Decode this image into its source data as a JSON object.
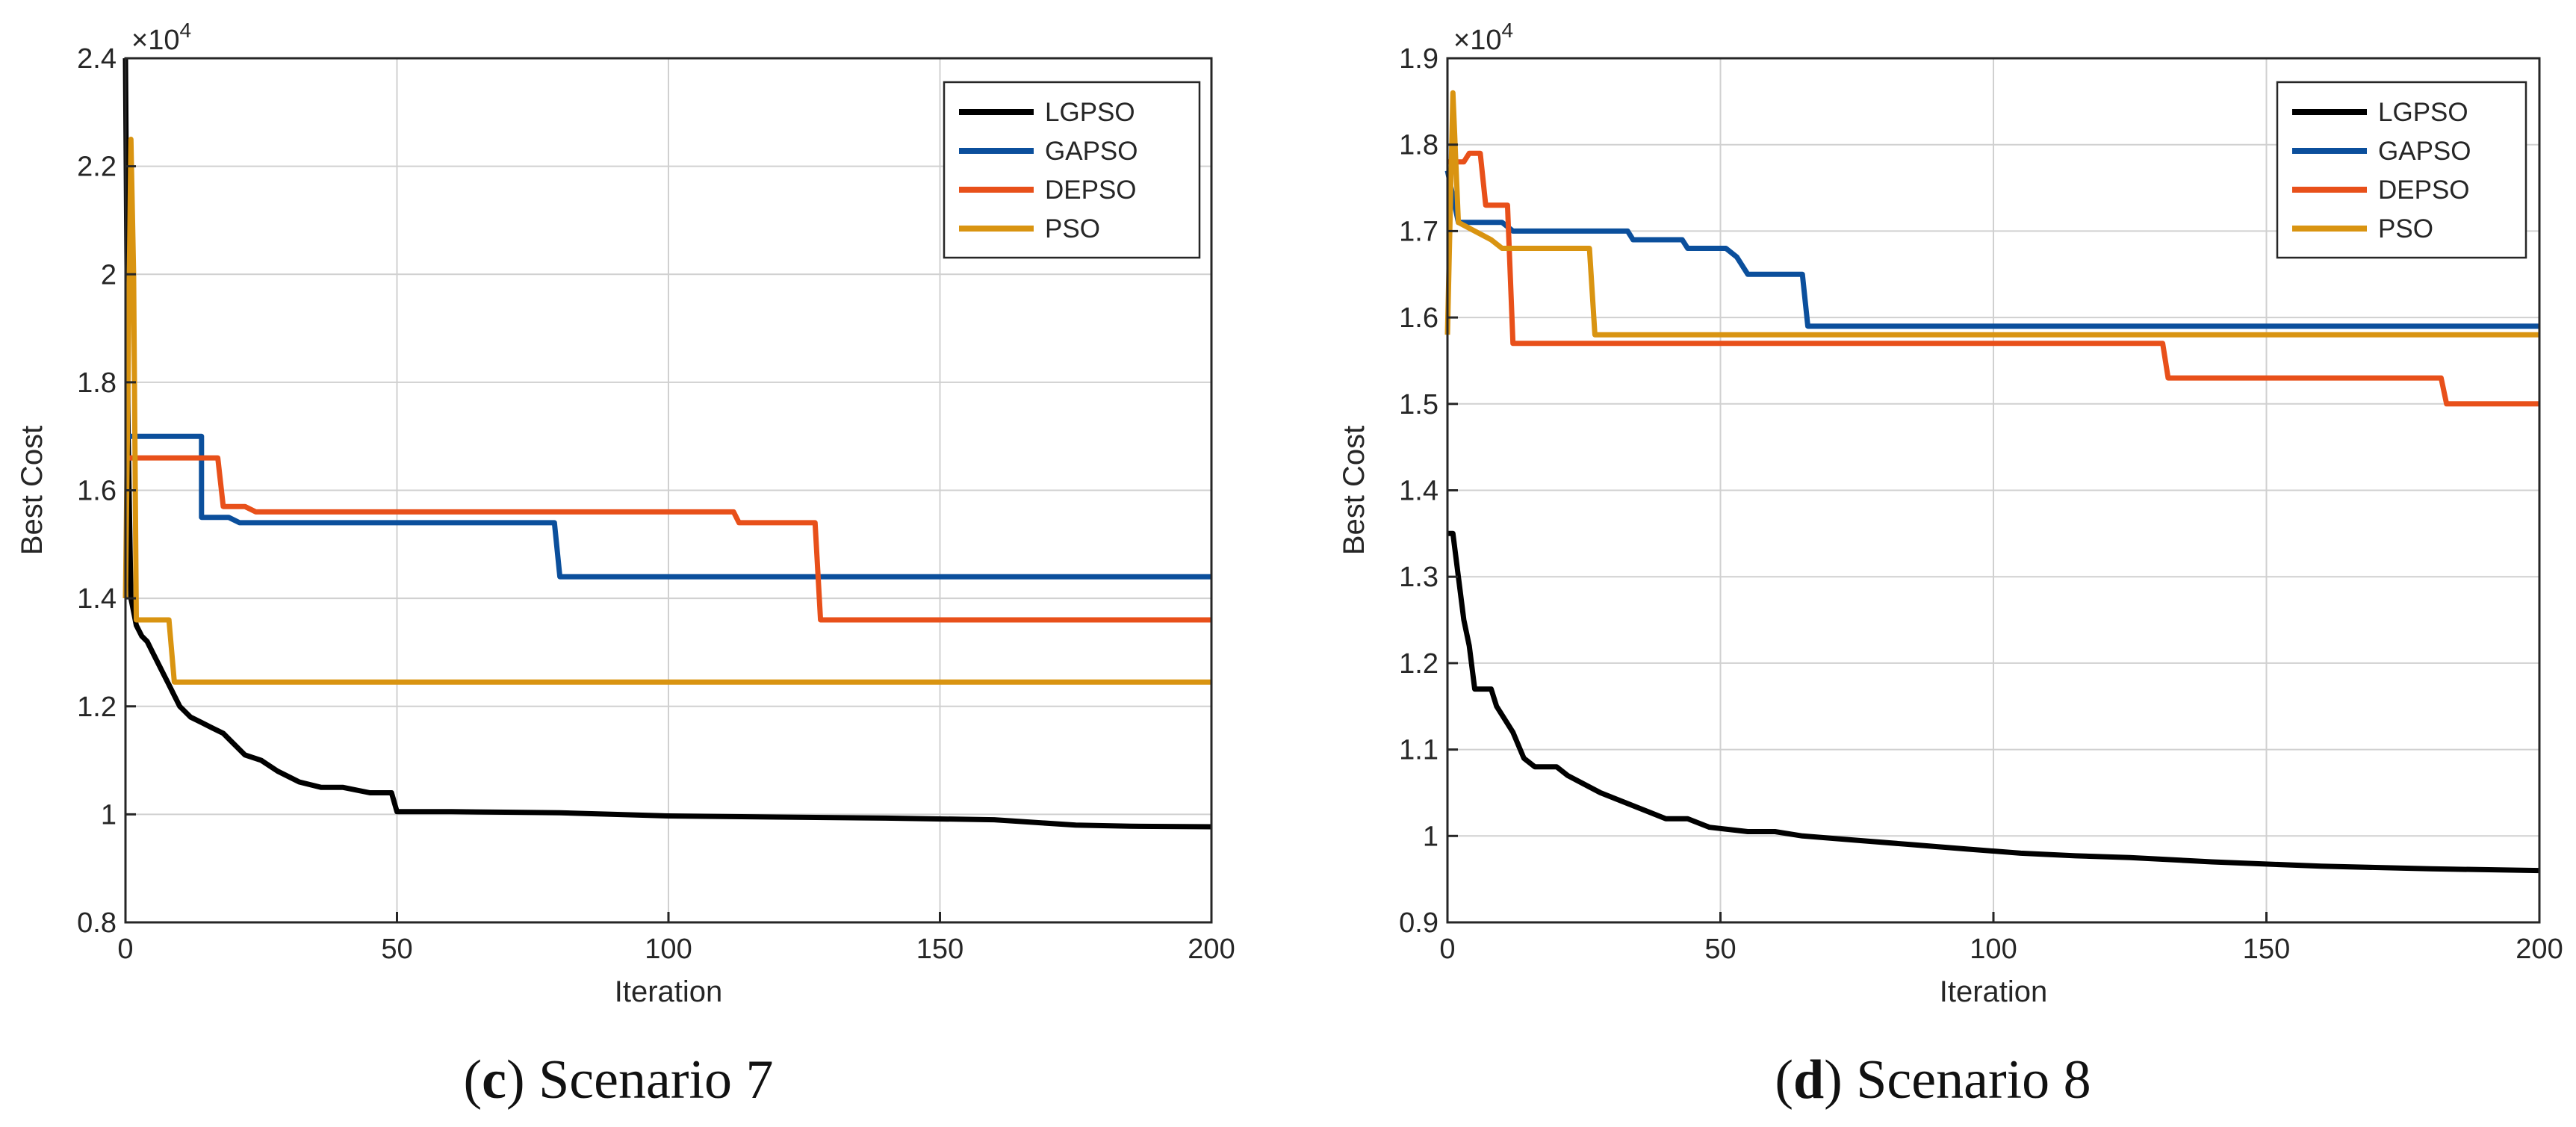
{
  "chart_data": [
    {
      "type": "line",
      "panel_letter": "c",
      "caption": "Scenario 7",
      "multiplier": "×10",
      "multiplier_exp": "4",
      "xlabel": "Iteration",
      "ylabel": "Best Cost",
      "xlim": [
        0,
        200
      ],
      "ylim": [
        0.8,
        2.4
      ],
      "xticks": [
        0,
        50,
        100,
        150,
        200
      ],
      "xtick_labels": [
        "0",
        "50",
        "100",
        "150",
        "200"
      ],
      "yticks": [
        0.8,
        1.0,
        1.2,
        1.4,
        1.6,
        1.8,
        2.0,
        2.2,
        2.4
      ],
      "ytick_labels": [
        "0.8",
        "1",
        "1.2",
        "1.4",
        "1.6",
        "1.8",
        "2",
        "2.2",
        "2.4"
      ],
      "grid": true,
      "legend_position": "top-right",
      "series": [
        {
          "name": "LGPSO",
          "color": "#000000",
          "points": [
            [
              0,
              2.4
            ],
            [
              0.5,
              1.7
            ],
            [
              1,
              1.4
            ],
            [
              2,
              1.35
            ],
            [
              3,
              1.33
            ],
            [
              4,
              1.32
            ],
            [
              5,
              1.3
            ],
            [
              6,
              1.28
            ],
            [
              7,
              1.26
            ],
            [
              8,
              1.24
            ],
            [
              9,
              1.22
            ],
            [
              10,
              1.2
            ],
            [
              12,
              1.18
            ],
            [
              14,
              1.17
            ],
            [
              16,
              1.16
            ],
            [
              18,
              1.15
            ],
            [
              20,
              1.13
            ],
            [
              22,
              1.11
            ],
            [
              25,
              1.1
            ],
            [
              28,
              1.08
            ],
            [
              32,
              1.06
            ],
            [
              36,
              1.05
            ],
            [
              40,
              1.05
            ],
            [
              45,
              1.04
            ],
            [
              49,
              1.04
            ],
            [
              50,
              1.005
            ],
            [
              60,
              1.005
            ],
            [
              70,
              1.004
            ],
            [
              80,
              1.003
            ],
            [
              90,
              1.0
            ],
            [
              100,
              0.997
            ],
            [
              120,
              0.995
            ],
            [
              140,
              0.993
            ],
            [
              160,
              0.99
            ],
            [
              175,
              0.98
            ],
            [
              185,
              0.978
            ],
            [
              200,
              0.977
            ]
          ]
        },
        {
          "name": "GAPSO",
          "color": "#0b4f9c",
          "points": [
            [
              0,
              1.7
            ],
            [
              14,
              1.7
            ],
            [
              14,
              1.55
            ],
            [
              19,
              1.55
            ],
            [
              21,
              1.54
            ],
            [
              79,
              1.54
            ],
            [
              80,
              1.44
            ],
            [
              200,
              1.44
            ]
          ]
        },
        {
          "name": "DEPSO",
          "color": "#e8501a",
          "points": [
            [
              0,
              1.66
            ],
            [
              17,
              1.66
            ],
            [
              18,
              1.57
            ],
            [
              22,
              1.57
            ],
            [
              24,
              1.56
            ],
            [
              112,
              1.56
            ],
            [
              113,
              1.54
            ],
            [
              127,
              1.54
            ],
            [
              128,
              1.36
            ],
            [
              200,
              1.36
            ]
          ]
        },
        {
          "name": "PSO",
          "color": "#d99411",
          "points": [
            [
              0,
              1.4
            ],
            [
              1,
              2.25
            ],
            [
              1.5,
              2.0
            ],
            [
              2,
              1.36
            ],
            [
              8,
              1.36
            ],
            [
              9,
              1.245
            ],
            [
              200,
              1.245
            ]
          ]
        }
      ]
    },
    {
      "type": "line",
      "panel_letter": "d",
      "caption": "Scenario 8",
      "multiplier": "×10",
      "multiplier_exp": "4",
      "xlabel": "Iteration",
      "ylabel": "Best Cost",
      "xlim": [
        0,
        200
      ],
      "ylim": [
        0.9,
        1.9
      ],
      "xticks": [
        0,
        50,
        100,
        150,
        200
      ],
      "xtick_labels": [
        "0",
        "50",
        "100",
        "150",
        "200"
      ],
      "yticks": [
        0.9,
        1.0,
        1.1,
        1.2,
        1.3,
        1.4,
        1.5,
        1.6,
        1.7,
        1.8,
        1.9
      ],
      "ytick_labels": [
        "0.9",
        "1",
        "1.1",
        "1.2",
        "1.3",
        "1.4",
        "1.5",
        "1.6",
        "1.7",
        "1.8",
        "1.9"
      ],
      "grid": true,
      "legend_position": "top-right",
      "series": [
        {
          "name": "LGPSO",
          "color": "#000000",
          "points": [
            [
              0,
              1.35
            ],
            [
              1,
              1.35
            ],
            [
              2,
              1.3
            ],
            [
              3,
              1.25
            ],
            [
              4,
              1.22
            ],
            [
              5,
              1.17
            ],
            [
              8,
              1.17
            ],
            [
              9,
              1.15
            ],
            [
              11,
              1.13
            ],
            [
              12,
              1.12
            ],
            [
              14,
              1.09
            ],
            [
              16,
              1.08
            ],
            [
              20,
              1.08
            ],
            [
              22,
              1.07
            ],
            [
              25,
              1.06
            ],
            [
              28,
              1.05
            ],
            [
              32,
              1.04
            ],
            [
              36,
              1.03
            ],
            [
              40,
              1.02
            ],
            [
              44,
              1.02
            ],
            [
              48,
              1.01
            ],
            [
              55,
              1.005
            ],
            [
              60,
              1.005
            ],
            [
              65,
              1.0
            ],
            [
              75,
              0.995
            ],
            [
              85,
              0.99
            ],
            [
              95,
              0.985
            ],
            [
              105,
              0.98
            ],
            [
              115,
              0.977
            ],
            [
              125,
              0.975
            ],
            [
              140,
              0.97
            ],
            [
              160,
              0.965
            ],
            [
              180,
              0.962
            ],
            [
              200,
              0.96
            ]
          ]
        },
        {
          "name": "GAPSO",
          "color": "#0b4f9c",
          "points": [
            [
              0,
              1.77
            ],
            [
              2,
              1.71
            ],
            [
              10,
              1.71
            ],
            [
              12,
              1.7
            ],
            [
              33,
              1.7
            ],
            [
              34,
              1.69
            ],
            [
              43,
              1.69
            ],
            [
              44,
              1.68
            ],
            [
              51,
              1.68
            ],
            [
              53,
              1.67
            ],
            [
              55,
              1.65
            ],
            [
              65,
              1.65
            ],
            [
              66,
              1.59
            ],
            [
              200,
              1.59
            ]
          ]
        },
        {
          "name": "DEPSO",
          "color": "#e8501a",
          "points": [
            [
              0,
              1.78
            ],
            [
              3,
              1.78
            ],
            [
              4,
              1.79
            ],
            [
              6,
              1.79
            ],
            [
              7,
              1.73
            ],
            [
              11,
              1.73
            ],
            [
              12,
              1.57
            ],
            [
              131,
              1.57
            ],
            [
              132,
              1.53
            ],
            [
              182,
              1.53
            ],
            [
              183,
              1.5
            ],
            [
              200,
              1.5
            ]
          ]
        },
        {
          "name": "PSO",
          "color": "#d99411",
          "points": [
            [
              0,
              1.58
            ],
            [
              1,
              1.86
            ],
            [
              2,
              1.71
            ],
            [
              5,
              1.7
            ],
            [
              8,
              1.69
            ],
            [
              10,
              1.68
            ],
            [
              14,
              1.68
            ],
            [
              26,
              1.68
            ],
            [
              27,
              1.58
            ],
            [
              200,
              1.58
            ]
          ]
        }
      ]
    }
  ]
}
